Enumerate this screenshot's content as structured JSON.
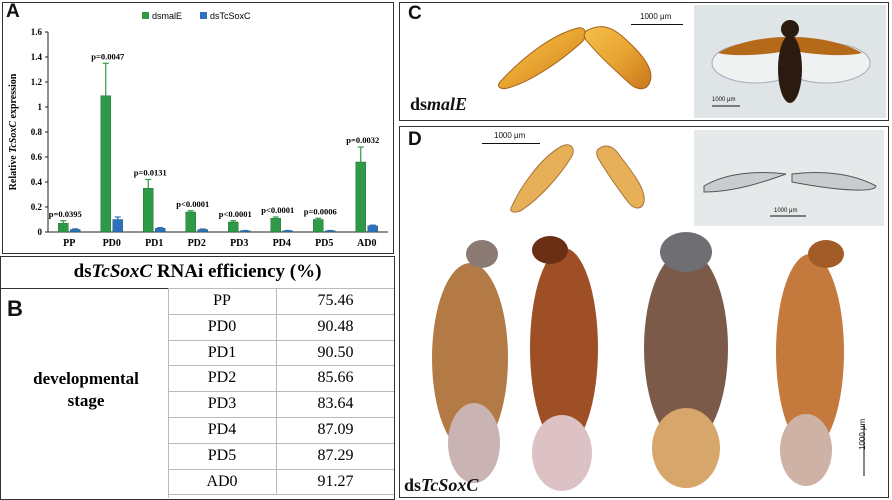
{
  "panels": {
    "a": "A",
    "b": "B",
    "c": "C",
    "d": "D"
  },
  "chart_data": {
    "type": "bar",
    "categories": [
      "PP",
      "PD0",
      "PD1",
      "PD2",
      "PD3",
      "PD4",
      "PD5",
      "AD0"
    ],
    "series": [
      {
        "name": "dsmalE",
        "values": [
          0.07,
          1.09,
          0.35,
          0.16,
          0.08,
          0.11,
          0.1,
          0.56
        ],
        "errors": [
          0.02,
          0.26,
          0.07,
          0.01,
          0.01,
          0.01,
          0.01,
          0.12
        ],
        "color": "#2e9a47"
      },
      {
        "name": "dsTcSoxC",
        "values": [
          0.02,
          0.1,
          0.03,
          0.02,
          0.01,
          0.01,
          0.01,
          0.05
        ],
        "errors": [
          0.005,
          0.02,
          0.005,
          0.004,
          0.002,
          0.002,
          0.002,
          0.005
        ],
        "color": "#2f6fc2"
      }
    ],
    "pvalues": [
      "p=0.0395",
      "p=0.0047",
      "p=0.0131",
      "p<0.0001",
      "p<0.0001",
      "p<0.0001",
      "p=0.0006",
      "p=0.0032"
    ],
    "ylabel_prefix": "Relative ",
    "ylabel_gene": "TcSoxC",
    "ylabel_suffix": " expression",
    "ylim": [
      0,
      1.6
    ],
    "yticks": [
      "0",
      "0.2",
      "0.4",
      "0.6",
      "0.8",
      "1",
      "1.2",
      "1.4",
      "1.6"
    ],
    "legend_position": "top-center"
  },
  "table": {
    "title_prefix": "ds",
    "title_gene": "TcSoxC",
    "title_suffix": " RNAi efficiency (%)",
    "row_header_line1": "developmental",
    "row_header_line2": "stage",
    "rows": [
      {
        "stage": "PP",
        "value": "75.46"
      },
      {
        "stage": "PD0",
        "value": "90.48"
      },
      {
        "stage": "PD1",
        "value": "90.50"
      },
      {
        "stage": "PD2",
        "value": "85.66"
      },
      {
        "stage": "PD3",
        "value": "83.64"
      },
      {
        "stage": "PD4",
        "value": "87.09"
      },
      {
        "stage": "PD5",
        "value": "87.29"
      },
      {
        "stage": "AD0",
        "value": "91.27"
      }
    ]
  },
  "photos": {
    "c_label_prefix": "ds",
    "c_label_gene": "malE",
    "d_label_prefix": "ds",
    "d_label_gene": "TcSoxC",
    "scale_c_elytra": "1000 μm",
    "scale_c_beetle": "1000 μm",
    "scale_d_elytra": "1000 μm",
    "scale_d_wings": "1000 μm",
    "scale_d_bodies": "1000 μm"
  }
}
